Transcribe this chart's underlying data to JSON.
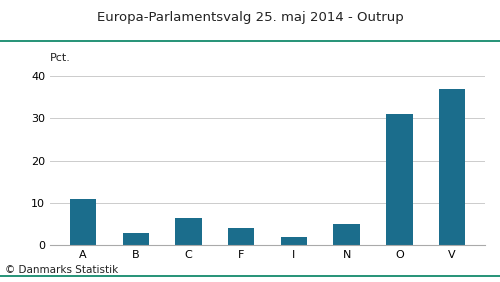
{
  "title": "Europa-Parlamentsvalg 25. maj 2014 - Outrup",
  "categories": [
    "A",
    "B",
    "C",
    "F",
    "I",
    "N",
    "O",
    "V"
  ],
  "values": [
    11,
    3,
    6.5,
    4,
    2,
    5,
    31,
    37
  ],
  "bar_color": "#1b6d8c",
  "ylabel": "Pct.",
  "ylim": [
    0,
    40
  ],
  "yticks": [
    0,
    10,
    20,
    30,
    40
  ],
  "footnote": "© Danmarks Statistik",
  "title_color": "#222222",
  "background_color": "#ffffff",
  "grid_color": "#cccccc",
  "top_line_color": "#008060",
  "bottom_line_color": "#008060",
  "title_fontsize": 9.5,
  "label_fontsize": 8,
  "tick_fontsize": 8,
  "footnote_fontsize": 7.5
}
